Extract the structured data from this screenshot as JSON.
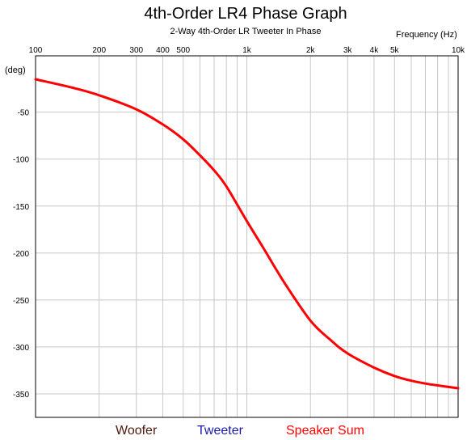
{
  "chart_data": {
    "type": "line",
    "title": "4th-Order LR4 Phase Graph",
    "subtitle": "2-Way 4th-Order LR Tweeter In Phase",
    "xlabel": "Frequency   (Hz)",
    "ylabel": "(deg)",
    "x_scale": "log",
    "xlim": [
      100,
      10000
    ],
    "ylim": [
      -375,
      10
    ],
    "grid": true,
    "x_ticks": [
      100,
      200,
      300,
      400,
      500,
      1000,
      2000,
      3000,
      4000,
      5000,
      10000
    ],
    "x_tick_labels": [
      "100",
      "200",
      "300",
      "400",
      "500",
      "1k",
      "2k",
      "3k",
      "4k",
      "5k",
      "10k"
    ],
    "y_ticks": [
      -50,
      -100,
      -150,
      -200,
      -250,
      -300,
      -350
    ],
    "y_tick_labels": [
      "-50",
      "-100",
      "-150",
      "-200",
      "-250",
      "-300",
      "-350"
    ],
    "legend": {
      "placement": "bottom",
      "entries": [
        {
          "name": "Woofer",
          "color": "#4a1a0a"
        },
        {
          "name": "Tweeter",
          "color": "#1a1aa8"
        },
        {
          "name": "Speaker Sum",
          "color": "#ff0000"
        }
      ]
    },
    "series": [
      {
        "name": "Speaker Sum",
        "color": "#ff0000",
        "x": [
          100,
          150,
          200,
          300,
          400,
          500,
          600,
          700,
          800,
          1000,
          1200,
          1500,
          2000,
          2500,
          3000,
          4000,
          5000,
          6000,
          7000,
          8000,
          10000
        ],
        "y": [
          -15,
          -24,
          -32,
          -47,
          -63,
          -79,
          -96,
          -112,
          -129,
          -166,
          -195,
          -231,
          -272,
          -293,
          -307,
          -322,
          -331,
          -336,
          -339,
          -341,
          -344
        ]
      }
    ]
  }
}
